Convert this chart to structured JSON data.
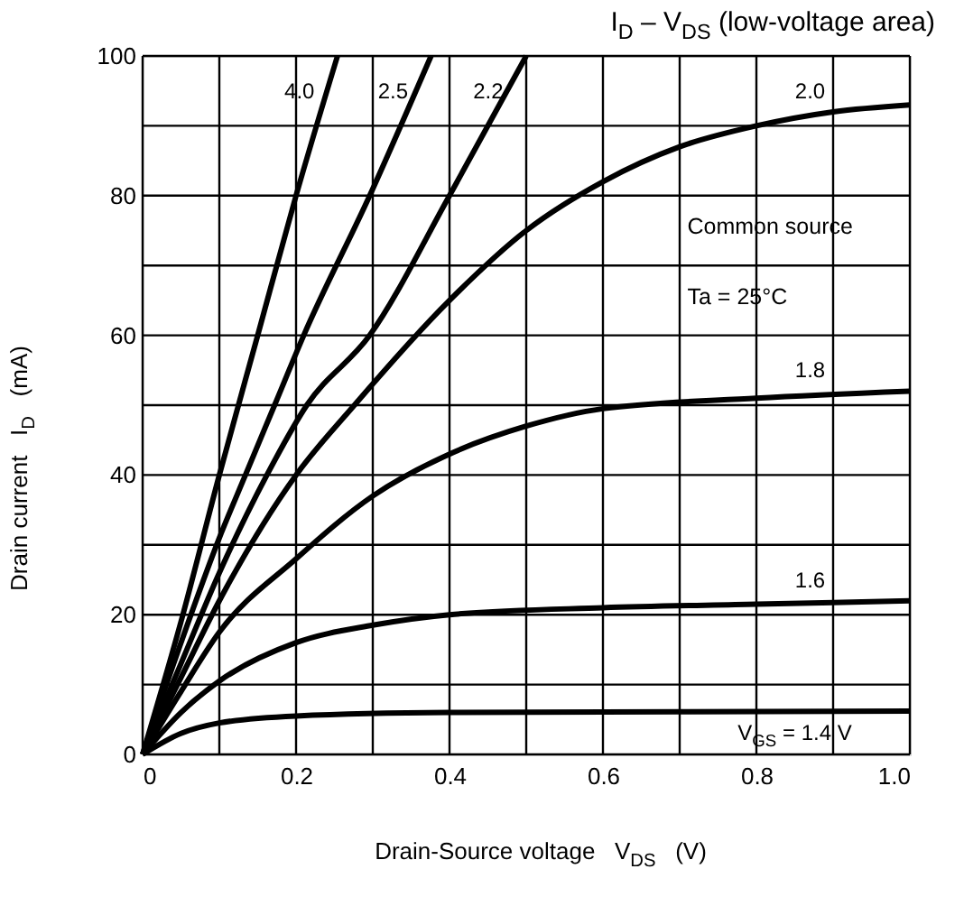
{
  "chart_data": {
    "type": "line",
    "title": "I$_{D}$ – V$_{DS}$ (low-voltage area)",
    "xlabel": "Drain-Source voltage   V$_{DS}$   (V)",
    "ylabel": "Drain current   I$_{D}$   (mA)",
    "annotations": [
      "Common source",
      "Ta = 25°C"
    ],
    "xlim": [
      0,
      1
    ],
    "ylim": [
      0,
      100
    ],
    "xticks": [
      0,
      {
        "value": 0.1,
        "label": null
      },
      0.2,
      {
        "value": 0.3,
        "label": null
      },
      0.4,
      {
        "value": 0.5,
        "label": null
      },
      0.6,
      {
        "value": 0.7,
        "label": null
      },
      0.8,
      {
        "value": 0.9,
        "label": null
      },
      {
        "value": 1,
        "label": "1.0"
      }
    ],
    "yticks": [
      0,
      {
        "value": 10,
        "label": null
      },
      20,
      {
        "value": 30,
        "label": null
      },
      40,
      {
        "value": 50,
        "label": null
      },
      60,
      {
        "value": 70,
        "label": null
      },
      80,
      {
        "value": 90,
        "label": null
      },
      100
    ],
    "grid": true,
    "legend": false,
    "line_style": "solid",
    "marker": "none",
    "series": [
      {
        "name": "4.0",
        "color": "#000000",
        "x": [
          0,
          0.05,
          0.1,
          0.15,
          0.2,
          0.254
        ],
        "values": [
          0,
          19,
          40,
          60,
          80,
          100
        ]
      },
      {
        "name": "2.5",
        "color": "#000000",
        "x": [
          0,
          0.05,
          0.1,
          0.134,
          0.172,
          0.21,
          0.296,
          0.376
        ],
        "values": [
          0,
          16,
          31,
          40,
          50,
          60,
          80,
          100
        ]
      },
      {
        "name": "2.2",
        "color": "#000000",
        "x": [
          0,
          0.05,
          0.1,
          0.162,
          0.214,
          0.296,
          0.4,
          0.5
        ],
        "values": [
          0,
          13,
          26,
          40,
          50,
          60,
          80,
          100
        ]
      },
      {
        "name": "2.0",
        "color": "#000000",
        "x": [
          0,
          0.05,
          0.1,
          0.2,
          0.276,
          0.4,
          0.5,
          0.6,
          0.7,
          0.8,
          0.9,
          1
        ],
        "values": [
          0,
          11,
          22,
          40,
          50,
          65,
          75,
          82,
          87,
          90,
          92,
          93
        ]
      },
      {
        "name": "1.8",
        "color": "#000000",
        "x": [
          0,
          0.05,
          0.1,
          0.2,
          0.3,
          0.4,
          0.5,
          0.6,
          0.8,
          1
        ],
        "values": [
          0,
          9,
          17.5,
          28,
          37,
          43,
          47,
          49.5,
          51,
          52
        ]
      },
      {
        "name": "1.6",
        "color": "#000000",
        "x": [
          0,
          0.05,
          0.1,
          0.2,
          0.3,
          0.4,
          0.6,
          0.8,
          1
        ],
        "values": [
          0,
          6,
          10.5,
          16,
          18.5,
          20,
          21,
          21.5,
          22
        ]
      },
      {
        "name": "V$_{GS}$ = 1.4 V",
        "color": "#000000",
        "x": [
          0,
          0.05,
          0.1,
          0.2,
          0.4,
          0.7,
          1
        ],
        "values": [
          0,
          3,
          4.5,
          5.5,
          6,
          6.1,
          6.2
        ]
      }
    ]
  }
}
